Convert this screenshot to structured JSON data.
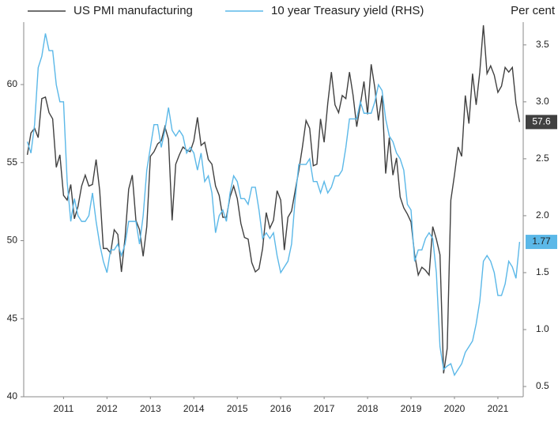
{
  "chart_data": {
    "type": "line",
    "legend": "top",
    "y2_title": "Per cent",
    "x": [
      "2010-09",
      "2010-10",
      "2010-11",
      "2010-12",
      "2011-01",
      "2011-02",
      "2011-03",
      "2011-04",
      "2011-05",
      "2011-06",
      "2011-07",
      "2011-08",
      "2011-09",
      "2011-10",
      "2011-11",
      "2011-12",
      "2012-01",
      "2012-02",
      "2012-03",
      "2012-04",
      "2012-05",
      "2012-06",
      "2012-07",
      "2012-08",
      "2012-09",
      "2012-10",
      "2012-11",
      "2012-12",
      "2013-01",
      "2013-02",
      "2013-03",
      "2013-04",
      "2013-05",
      "2013-06",
      "2013-07",
      "2013-08",
      "2013-09",
      "2013-10",
      "2013-11",
      "2013-12",
      "2014-01",
      "2014-02",
      "2014-03",
      "2014-04",
      "2014-05",
      "2014-06",
      "2014-07",
      "2014-08",
      "2014-09",
      "2014-10",
      "2014-11",
      "2014-12",
      "2015-01",
      "2015-02",
      "2015-03",
      "2015-04",
      "2015-05",
      "2015-06",
      "2015-07",
      "2015-08",
      "2015-09",
      "2015-10",
      "2015-11",
      "2015-12",
      "2016-01",
      "2016-02",
      "2016-03",
      "2016-04",
      "2016-05",
      "2016-06",
      "2016-07",
      "2016-08",
      "2016-09",
      "2016-10",
      "2016-11",
      "2016-12",
      "2017-01",
      "2017-02",
      "2017-03",
      "2017-04",
      "2017-05",
      "2017-06",
      "2017-07",
      "2017-08",
      "2017-09",
      "2017-10",
      "2017-11",
      "2017-12",
      "2018-01",
      "2018-02",
      "2018-03",
      "2018-04",
      "2018-05",
      "2018-06",
      "2018-07",
      "2018-08",
      "2018-09",
      "2018-10",
      "2018-11",
      "2018-12",
      "2019-01",
      "2019-02",
      "2019-03",
      "2019-04",
      "2019-05",
      "2019-06",
      "2019-07",
      "2019-08",
      "2019-09",
      "2019-10",
      "2019-11",
      "2019-12",
      "2020-01",
      "2020-02",
      "2020-03",
      "2020-04",
      "2020-05",
      "2020-06",
      "2020-07",
      "2020-08",
      "2020-09",
      "2020-10",
      "2020-11",
      "2020-12",
      "2021-01",
      "2021-02",
      "2021-03",
      "2021-04",
      "2021-05",
      "2021-06",
      "2021-07",
      "2021-08",
      "2021-09",
      "2021-10",
      "2021-11",
      "2021-12",
      "2022-01"
    ],
    "series": [
      {
        "name": "US PMI manufacturing",
        "color": "#404040",
        "axis": "y",
        "end_label": "57.6",
        "values": [
          55.5,
          56.9,
          57.2,
          56.6,
          59.1,
          59.2,
          58.2,
          57.8,
          54.7,
          55.5,
          52.9,
          52.6,
          53.6,
          51.4,
          52.2,
          53.5,
          54.2,
          53.5,
          53.6,
          55.2,
          53.2,
          49.5,
          49.5,
          49.2,
          50.7,
          50.4,
          48.0,
          50.2,
          53.3,
          54.2,
          51.3,
          50.7,
          49.0,
          50.9,
          55.4,
          55.7,
          56.2,
          56.4,
          57.3,
          56.5,
          51.3,
          54.9,
          55.5,
          56.0,
          55.8,
          55.7,
          56.4,
          57.9,
          56.1,
          56.3,
          55.2,
          54.9,
          53.5,
          52.9,
          51.5,
          51.5,
          52.8,
          53.5,
          52.7,
          51.1,
          50.2,
          50.1,
          48.6,
          48.0,
          48.2,
          49.5,
          51.8,
          50.8,
          51.3,
          53.2,
          52.6,
          49.4,
          51.5,
          51.9,
          53.2,
          54.5,
          56.0,
          57.7,
          57.2,
          54.8,
          54.9,
          57.8,
          56.3,
          58.8,
          60.8,
          58.7,
          58.2,
          59.3,
          59.1,
          60.8,
          59.3,
          57.3,
          58.7,
          60.2,
          58.1,
          61.3,
          59.8,
          57.7,
          59.3,
          54.3,
          56.6,
          54.2,
          55.3,
          52.8,
          52.1,
          51.7,
          51.2,
          49.1,
          47.8,
          48.3,
          48.1,
          47.8,
          50.9,
          50.1,
          49.1,
          41.5,
          43.1,
          52.6,
          54.2,
          56.0,
          55.4,
          59.3,
          57.5,
          60.7,
          58.7,
          60.8,
          63.8,
          60.7,
          61.2,
          60.6,
          59.5,
          59.9,
          61.1,
          60.8,
          61.1,
          58.8,
          57.6
        ]
      },
      {
        "name": "10 year Treasury yield (RHS)",
        "color": "#5bb8e8",
        "axis": "y2",
        "end_label": "1.77",
        "values": [
          2.65,
          2.55,
          2.8,
          3.3,
          3.4,
          3.6,
          3.45,
          3.45,
          3.15,
          3.0,
          3.0,
          2.3,
          1.95,
          2.15,
          2.0,
          1.95,
          1.95,
          2.0,
          2.2,
          1.95,
          1.75,
          1.6,
          1.5,
          1.7,
          1.7,
          1.75,
          1.65,
          1.75,
          1.95,
          1.95,
          1.95,
          1.75,
          2.0,
          2.4,
          2.6,
          2.8,
          2.8,
          2.6,
          2.75,
          2.95,
          2.75,
          2.7,
          2.75,
          2.7,
          2.55,
          2.6,
          2.55,
          2.4,
          2.55,
          2.3,
          2.35,
          2.2,
          1.85,
          2.0,
          2.05,
          1.95,
          2.2,
          2.35,
          2.3,
          2.15,
          2.15,
          2.1,
          2.25,
          2.25,
          2.05,
          1.8,
          1.85,
          1.8,
          1.85,
          1.65,
          1.5,
          1.55,
          1.6,
          1.75,
          2.15,
          2.45,
          2.45,
          2.45,
          2.5,
          2.3,
          2.3,
          2.2,
          2.3,
          2.2,
          2.25,
          2.35,
          2.35,
          2.4,
          2.6,
          2.85,
          2.85,
          2.85,
          3.0,
          2.9,
          2.9,
          2.9,
          3.0,
          3.15,
          3.1,
          2.85,
          2.7,
          2.65,
          2.55,
          2.5,
          2.4,
          2.1,
          2.05,
          1.6,
          1.7,
          1.7,
          1.8,
          1.85,
          1.8,
          1.5,
          0.85,
          0.65,
          0.68,
          0.7,
          0.6,
          0.65,
          0.7,
          0.8,
          0.85,
          0.9,
          1.05,
          1.25,
          1.6,
          1.65,
          1.6,
          1.5,
          1.3,
          1.3,
          1.4,
          1.6,
          1.55,
          1.45,
          1.77
        ]
      }
    ],
    "xlim": [
      "2010-08",
      "2022-02"
    ],
    "xticks": [
      {
        "value": "2011-07",
        "label": "2011"
      },
      {
        "value": "2012-07",
        "label": "2012"
      },
      {
        "value": "2013-07",
        "label": "2013"
      },
      {
        "value": "2014-07",
        "label": "2014"
      },
      {
        "value": "2015-07",
        "label": "2015"
      },
      {
        "value": "2016-07",
        "label": "2016"
      },
      {
        "value": "2017-07",
        "label": "2017"
      },
      {
        "value": "2018-07",
        "label": "2018"
      },
      {
        "value": "2019-07",
        "label": "2019"
      },
      {
        "value": "2020-07",
        "label": "2020"
      },
      {
        "value": "2021-07",
        "label": "2021"
      }
    ],
    "ylim": [
      40,
      64
    ],
    "yticks": [
      40,
      45,
      50,
      55,
      60
    ],
    "y2lim": [
      0.41,
      3.7
    ],
    "y2ticks": [
      0.5,
      {
        "value": 1,
        "label": "1.0"
      },
      1.5,
      {
        "value": 2,
        "label": "2.0"
      },
      2.5,
      {
        "value": 3,
        "label": "3.0"
      },
      3.5
    ],
    "grid": false
  }
}
